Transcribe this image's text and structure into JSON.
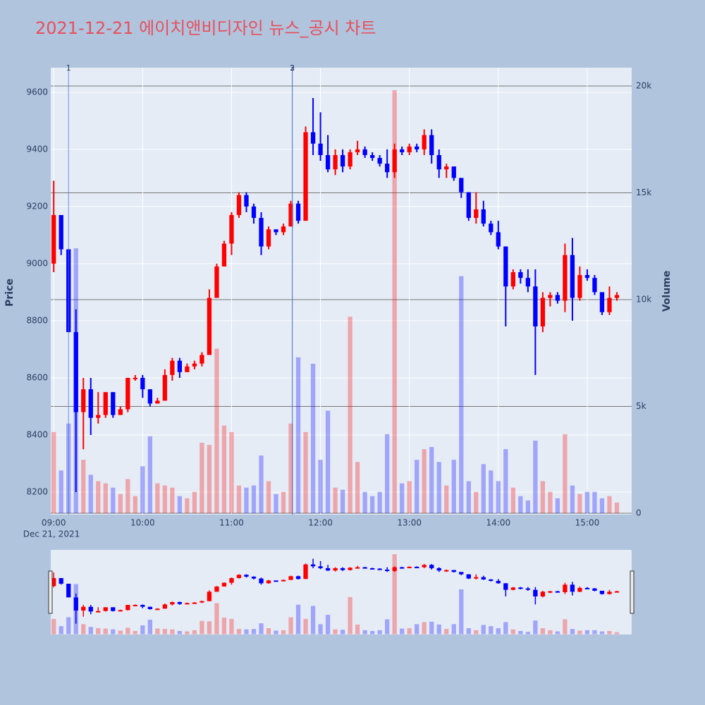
{
  "chart_data": {
    "type": "candlestick",
    "title": "2021-12-21 에이치앤비디자인 뉴스_공시 차트",
    "ylabel": "Price",
    "y2label": "Volume",
    "x_date_label": "Dec 21, 2021",
    "up_color": "#ff0000",
    "down_color": "#0000ff",
    "x": [
      "2021-12-21 09:00",
      "2021-12-21 09:05",
      "2021-12-21 09:10",
      "2021-12-21 09:15",
      "2021-12-21 09:20",
      "2021-12-21 09:25",
      "2021-12-21 09:30",
      "2021-12-21 09:35",
      "2021-12-21 09:40",
      "2021-12-21 09:45",
      "2021-12-21 09:50",
      "2021-12-21 09:55",
      "2021-12-21 10:00",
      "2021-12-21 10:05",
      "2021-12-21 10:10",
      "2021-12-21 10:15",
      "2021-12-21 10:20",
      "2021-12-21 10:25",
      "2021-12-21 10:30",
      "2021-12-21 10:35",
      "2021-12-21 10:40",
      "2021-12-21 10:45",
      "2021-12-21 10:50",
      "2021-12-21 10:55",
      "2021-12-21 11:00",
      "2021-12-21 11:05",
      "2021-12-21 11:10",
      "2021-12-21 11:15",
      "2021-12-21 11:20",
      "2021-12-21 11:25",
      "2021-12-21 11:30",
      "2021-12-21 11:35",
      "2021-12-21 11:40",
      "2021-12-21 11:45",
      "2021-12-21 11:50",
      "2021-12-21 11:55",
      "2021-12-21 12:00",
      "2021-12-21 12:05",
      "2021-12-21 12:10",
      "2021-12-21 12:15",
      "2021-12-21 12:20",
      "2021-12-21 12:25",
      "2021-12-21 12:30",
      "2021-12-21 12:35",
      "2021-12-21 12:40",
      "2021-12-21 12:45",
      "2021-12-21 12:50",
      "2021-12-21 12:55",
      "2021-12-21 13:00",
      "2021-12-21 13:05",
      "2021-12-21 13:10",
      "2021-12-21 13:15",
      "2021-12-21 13:20",
      "2021-12-21 13:25",
      "2021-12-21 13:30",
      "2021-12-21 13:35",
      "2021-12-21 13:40",
      "2021-12-21 13:45",
      "2021-12-21 13:50",
      "2021-12-21 13:55",
      "2021-12-21 14:00",
      "2021-12-21 14:05",
      "2021-12-21 14:10",
      "2021-12-21 14:15",
      "2021-12-21 14:20",
      "2021-12-21 14:25",
      "2021-12-21 14:30",
      "2021-12-21 14:35",
      "2021-12-21 14:40",
      "2021-12-21 14:45",
      "2021-12-21 14:50",
      "2021-12-21 14:55",
      "2021-12-21 15:00",
      "2021-12-21 15:05",
      "2021-12-21 15:10",
      "2021-12-21 15:15",
      "2021-12-21 15:20"
    ],
    "open": [
      9000,
      9170,
      9050,
      8760,
      8480,
      8560,
      8460,
      8470,
      8550,
      8470,
      8490,
      8600,
      8600,
      8560,
      8510,
      8520,
      8610,
      8660,
      8620,
      8640,
      8650,
      8680,
      8880,
      8990,
      9070,
      9170,
      9240,
      9200,
      9160,
      9060,
      9120,
      9110,
      9130,
      9210,
      9150,
      9460,
      9420,
      9380,
      9330,
      9380,
      9340,
      9390,
      9400,
      9380,
      9370,
      9350,
      9320,
      9400,
      9390,
      9410,
      9400,
      9450,
      9380,
      9330,
      9340,
      9300,
      9250,
      9160,
      9190,
      9140,
      9110,
      9060,
      8920,
      8970,
      8950,
      8920,
      8780,
      8880,
      8890,
      8870,
      9030,
      8880,
      8960,
      8950,
      8900,
      8830,
      8880
    ],
    "high": [
      9290,
      9170,
      9050,
      8840,
      8600,
      8600,
      8550,
      8550,
      8550,
      8500,
      8600,
      8610,
      8610,
      8560,
      8530,
      8630,
      8670,
      8670,
      8650,
      8660,
      8690,
      8910,
      9000,
      9080,
      9180,
      9250,
      9250,
      9210,
      9180,
      9130,
      9120,
      9140,
      9220,
      9220,
      9480,
      9580,
      9530,
      9450,
      9400,
      9400,
      9400,
      9430,
      9410,
      9390,
      9380,
      9400,
      9420,
      9410,
      9420,
      9420,
      9470,
      9470,
      9400,
      9350,
      9340,
      9300,
      9250,
      9250,
      9220,
      9150,
      9150,
      9060,
      8980,
      8980,
      8980,
      8980,
      8900,
      8900,
      8900,
      9070,
      9090,
      8990,
      8980,
      8960,
      8900,
      8920,
      8900
    ],
    "low": [
      8970,
      9030,
      8760,
      8200,
      8350,
      8400,
      8440,
      8460,
      8460,
      8470,
      8480,
      8590,
      8530,
      8500,
      8510,
      8520,
      8590,
      8600,
      8620,
      8630,
      8640,
      8680,
      8880,
      8990,
      9030,
      9160,
      9180,
      9140,
      9030,
      9050,
      9100,
      9100,
      9130,
      9140,
      9150,
      9380,
      9360,
      9320,
      9310,
      9320,
      9330,
      9380,
      9370,
      9360,
      9340,
      9300,
      9300,
      9380,
      9380,
      9390,
      9380,
      9350,
      9300,
      9300,
      9290,
      9230,
      9150,
      9140,
      9130,
      9100,
      9050,
      8780,
      8910,
      8930,
      8900,
      8610,
      8760,
      8850,
      8860,
      8830,
      8800,
      8870,
      8940,
      8890,
      8820,
      8820,
      8870
    ],
    "close": [
      9170,
      9050,
      8760,
      8480,
      8560,
      8460,
      8470,
      8550,
      8470,
      8490,
      8600,
      8600,
      8560,
      8510,
      8520,
      8610,
      8660,
      8620,
      8640,
      8650,
      8680,
      8880,
      8990,
      9070,
      9170,
      9240,
      9200,
      9160,
      9060,
      9120,
      9110,
      9130,
      9210,
      9150,
      9460,
      9420,
      9380,
      9330,
      9380,
      9340,
      9390,
      9400,
      9380,
      9370,
      9350,
      9320,
      9400,
      9390,
      9410,
      9400,
      9450,
      9380,
      9330,
      9340,
      9300,
      9250,
      9160,
      9190,
      9140,
      9110,
      9060,
      8920,
      8970,
      8950,
      8920,
      8780,
      8880,
      8890,
      8870,
      9030,
      8880,
      8960,
      8950,
      8900,
      8830,
      8880,
      8890
    ],
    "volume": [
      3800,
      2000,
      4200,
      12400,
      2500,
      1800,
      1500,
      1400,
      1200,
      900,
      1600,
      800,
      2200,
      3600,
      1400,
      1300,
      1200,
      800,
      700,
      1000,
      3300,
      3200,
      7700,
      4100,
      3800,
      1300,
      1200,
      1300,
      2700,
      1500,
      900,
      1000,
      4200,
      7300,
      3800,
      7000,
      2500,
      4800,
      1200,
      1100,
      9200,
      2400,
      1000,
      800,
      1000,
      3700,
      19800,
      1400,
      1500,
      2500,
      3000,
      3100,
      2400,
      1300,
      2500,
      11100,
      1500,
      1000,
      2300,
      2000,
      1500,
      3000,
      1200,
      800,
      600,
      3400,
      1500,
      1000,
      700,
      3700,
      1300,
      900,
      1000,
      1000,
      700,
      800,
      500
    ],
    "xlim": [
      "2021-12-21 08:58",
      "2021-12-21 15:30"
    ],
    "xticks": [
      {
        "value": "2021-12-21 09:00",
        "label": "09:00"
      },
      {
        "value": "2021-12-21 10:00",
        "label": "10:00"
      },
      {
        "value": "2021-12-21 11:00",
        "label": "11:00"
      },
      {
        "value": "2021-12-21 12:00",
        "label": "12:00"
      },
      {
        "value": "2021-12-21 13:00",
        "label": "13:00"
      },
      {
        "value": "2021-12-21 14:00",
        "label": "14:00"
      },
      {
        "value": "2021-12-21 15:00",
        "label": "15:00"
      }
    ],
    "ylim": [
      8121,
      9686
    ],
    "yticks": [
      8200,
      8400,
      8600,
      8800,
      9000,
      9200,
      9400,
      9600
    ],
    "y2lim": [
      -66,
      20858
    ],
    "y2ticks": [
      0,
      {
        "value": 5000,
        "label": "5k"
      },
      {
        "value": 10000,
        "label": "10k"
      },
      {
        "value": 15000,
        "label": "15k"
      },
      {
        "value": 20000,
        "label": "20k"
      }
    ],
    "grid": true,
    "rangeslider": true,
    "annotations": [
      {
        "x": "2021-12-21 09:10",
        "text": "1"
      },
      {
        "x": "2021-12-21 11:41",
        "text": "2"
      },
      {
        "x": "2021-12-21 11:41",
        "text": "3"
      }
    ]
  }
}
